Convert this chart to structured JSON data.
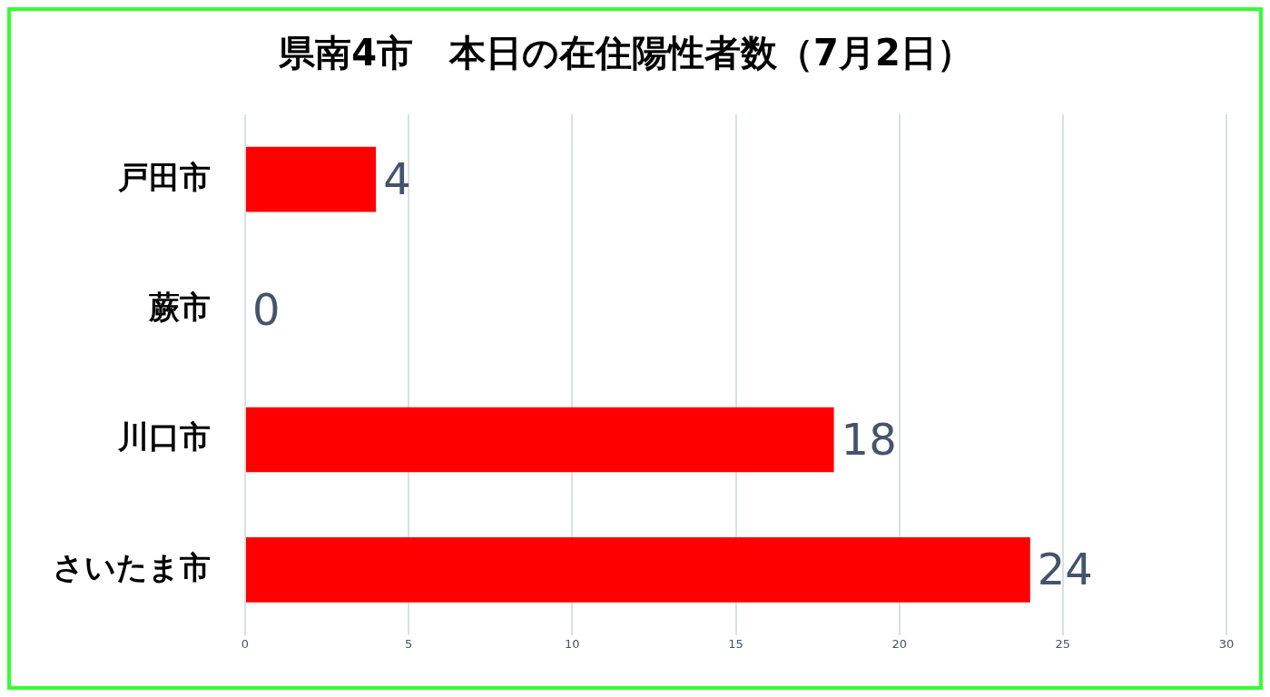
{
  "chart_data": {
    "type": "bar",
    "orientation": "horizontal",
    "title": "県南4市　本日の在住陽性者数（7月2日）",
    "categories": [
      "戸田市",
      "蕨市",
      "川口市",
      "さいたま市"
    ],
    "values": [
      4,
      0,
      18,
      24
    ],
    "color": "#ff0000",
    "xlim": [
      0,
      30
    ],
    "xticks": [
      0,
      5,
      10,
      15,
      20,
      25,
      30
    ],
    "grid": "x",
    "data_labels": true,
    "legend": false
  }
}
